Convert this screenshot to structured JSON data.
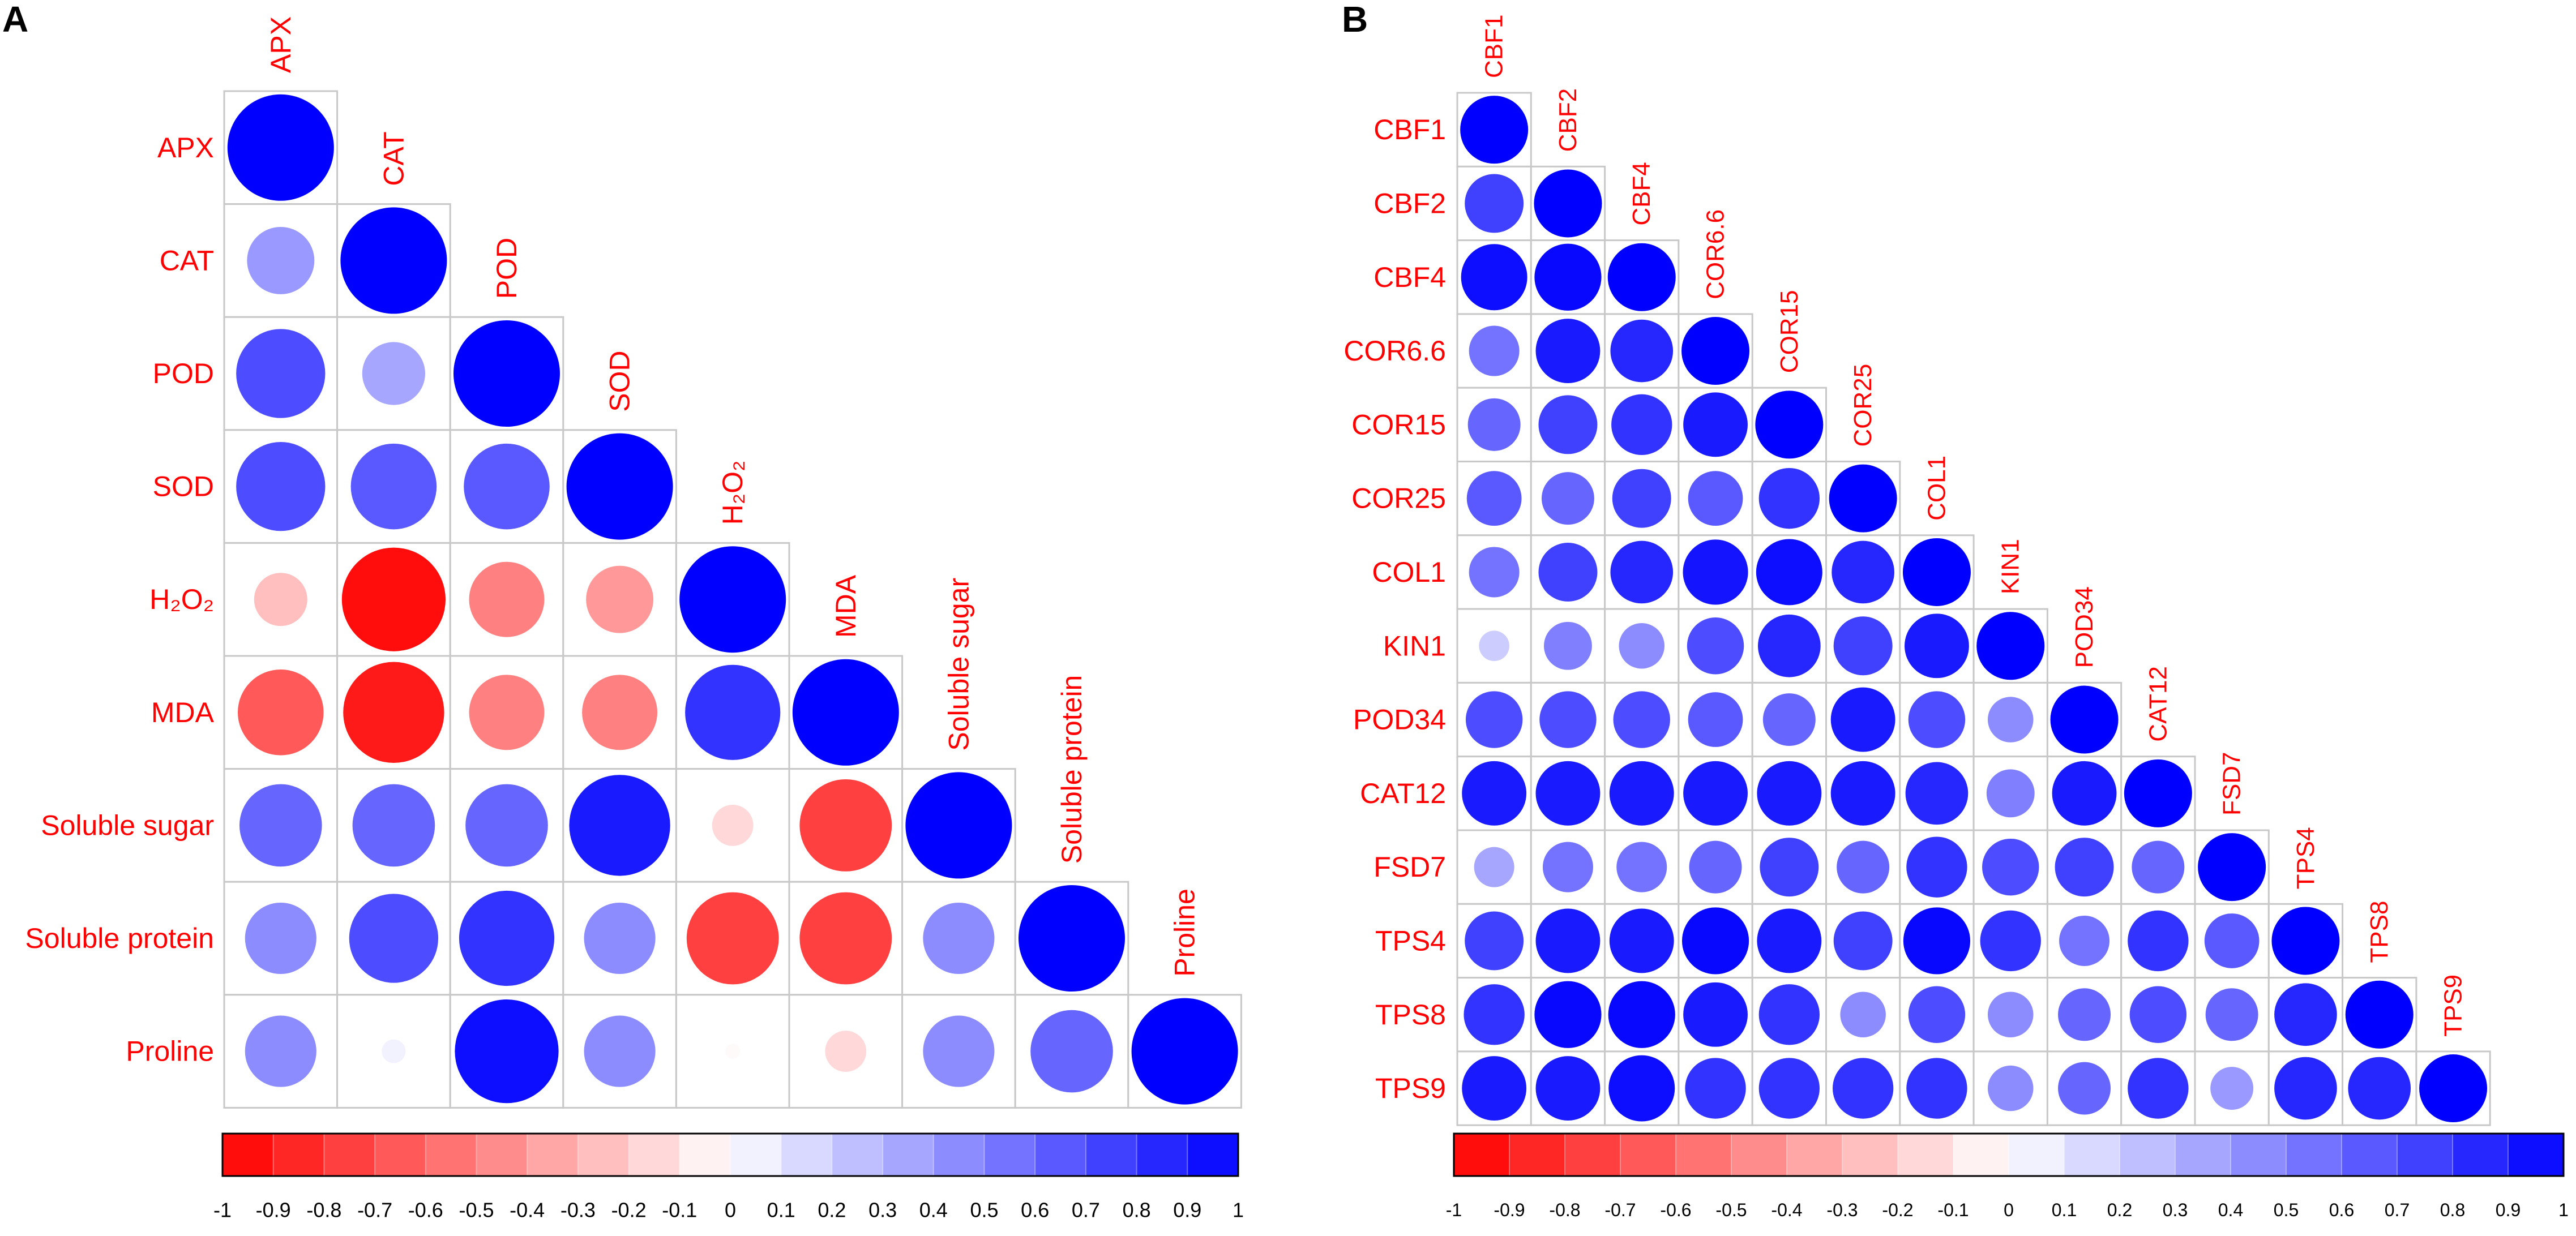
{
  "chart_data": [
    {
      "type": "heatmap",
      "subtype": "correlation-circle-lower-triangle",
      "panel_label": "A",
      "variables": [
        "APX",
        "CAT",
        "POD",
        "SOD",
        "H₂O₂",
        "MDA",
        "Soluble sugar",
        "Soluble protein",
        "Proline"
      ],
      "lower_triangle": [
        [
          1.0
        ],
        [
          0.4,
          1.0
        ],
        [
          0.7,
          0.35,
          1.0
        ],
        [
          0.7,
          0.65,
          0.65,
          1.0
        ],
        [
          -0.25,
          -0.95,
          -0.5,
          -0.4,
          1.0
        ],
        [
          -0.65,
          -0.9,
          -0.5,
          -0.5,
          0.8,
          1.0
        ],
        [
          0.6,
          0.6,
          0.6,
          0.9,
          -0.15,
          -0.75,
          1.0
        ],
        [
          0.45,
          0.7,
          0.8,
          0.45,
          -0.75,
          -0.75,
          0.45,
          1.0
        ],
        [
          0.45,
          0.05,
          0.95,
          0.45,
          -0.02,
          -0.15,
          0.45,
          0.6,
          1.0
        ]
      ],
      "colorbar": {
        "range": [
          -1,
          1
        ],
        "ticks": [
          "-1",
          "-0.9",
          "-0.8",
          "-0.7",
          "-0.6",
          "-0.5",
          "-0.4",
          "-0.3",
          "-0.2",
          "-0.1",
          "0",
          "0.1",
          "0.2",
          "0.3",
          "0.4",
          "0.5",
          "0.6",
          "0.7",
          "0.8",
          "0.9",
          "1"
        ],
        "negative_color": "#ff0000",
        "positive_color": "#0000ff",
        "zero_color": "#ffffff"
      },
      "label_color": "#ff0000"
    },
    {
      "type": "heatmap",
      "subtype": "correlation-circle-lower-triangle",
      "panel_label": "B",
      "variables": [
        "CBF1",
        "CBF2",
        "CBF4",
        "COR6.6",
        "COR15",
        "COR25",
        "COL1",
        "KIN1",
        "POD34",
        "CAT12",
        "FSD7",
        "TPS4",
        "TPS8",
        "TPS9"
      ],
      "lower_triangle": [
        [
          1.0
        ],
        [
          0.75,
          1.0
        ],
        [
          0.95,
          0.97,
          1.0
        ],
        [
          0.55,
          0.9,
          0.85,
          1.0
        ],
        [
          0.6,
          0.75,
          0.8,
          0.9,
          1.0
        ],
        [
          0.65,
          0.6,
          0.75,
          0.65,
          0.8,
          1.0
        ],
        [
          0.55,
          0.75,
          0.85,
          0.92,
          0.95,
          0.85,
          1.0
        ],
        [
          0.2,
          0.5,
          0.45,
          0.7,
          0.85,
          0.75,
          0.9,
          1.0
        ],
        [
          0.7,
          0.7,
          0.7,
          0.65,
          0.6,
          0.9,
          0.7,
          0.45,
          1.0
        ],
        [
          0.9,
          0.9,
          0.9,
          0.9,
          0.9,
          0.9,
          0.85,
          0.5,
          0.9,
          1.0
        ],
        [
          0.35,
          0.55,
          0.55,
          0.6,
          0.75,
          0.6,
          0.8,
          0.7,
          0.75,
          0.6,
          1.0
        ],
        [
          0.75,
          0.9,
          0.9,
          0.97,
          0.9,
          0.75,
          0.97,
          0.8,
          0.55,
          0.8,
          0.65,
          1.0
        ],
        [
          0.8,
          0.97,
          0.97,
          0.9,
          0.8,
          0.45,
          0.7,
          0.45,
          0.6,
          0.7,
          0.6,
          0.85,
          1.0
        ],
        [
          0.9,
          0.9,
          0.95,
          0.8,
          0.8,
          0.8,
          0.8,
          0.45,
          0.6,
          0.8,
          0.4,
          0.85,
          0.85,
          1.0
        ]
      ],
      "colorbar": {
        "range": [
          -1,
          1
        ],
        "ticks": [
          "-1",
          "-0.9",
          "-0.8",
          "-0.7",
          "-0.6",
          "-0.5",
          "-0.4",
          "-0.3",
          "-0.2",
          "-0.1",
          "0",
          "0.1",
          "0.2",
          "0.3",
          "0.4",
          "0.5",
          "0.6",
          "0.7",
          "0.8",
          "0.9",
          "1"
        ],
        "negative_color": "#ff0000",
        "positive_color": "#0000ff",
        "zero_color": "#ffffff"
      },
      "label_color": "#ff0000"
    }
  ]
}
